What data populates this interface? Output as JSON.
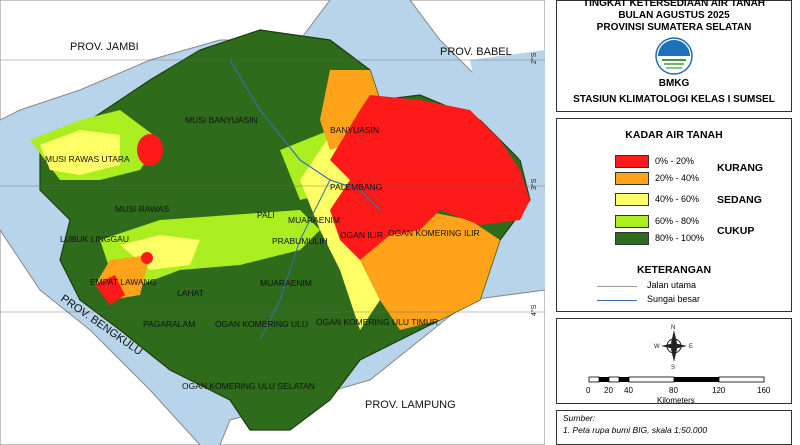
{
  "header": {
    "line1": "TINGKAT KETERSEDIAAN AIR TANAH",
    "line2": "BULAN AGUSTUS 2025",
    "line3": "PROVINSI SUMATERA SELATAN",
    "logo_text": "BMKG",
    "station": "STASIUN KLIMATOLOGI KELAS I SUMSEL"
  },
  "legend": {
    "title": "KADAR AIR TANAH",
    "items": [
      {
        "range": "0% - 20%",
        "color": "#ff1a1a"
      },
      {
        "range": "20% - 40%",
        "color": "#ffa31a"
      },
      {
        "range": "40% - 60%",
        "color": "#ffff66"
      },
      {
        "range": "60% - 80%",
        "color": "#aaee22"
      },
      {
        "range": "80% - 100%",
        "color": "#2e6b1a"
      }
    ],
    "classes": [
      "KURANG",
      "SEDANG",
      "CUKUP"
    ]
  },
  "keterangan": {
    "title": "KETERANGAN",
    "items": [
      "Jalan utama",
      "Sungai besar"
    ]
  },
  "compass": {
    "n": "N",
    "s": "S",
    "e": "E",
    "w": "W"
  },
  "scale": {
    "ticks": [
      "0",
      "20",
      "40",
      "80",
      "120",
      "160"
    ],
    "unit": "Kilometers"
  },
  "source": {
    "label": "Sumber:",
    "line1": "1. Peta rupa bumi BIG, skala 1:50.000"
  },
  "map": {
    "neighbors": [
      "PROV. JAMBI",
      "PROV. BABEL",
      "PROV. BENGKULU",
      "PROV. LAMPUNG"
    ],
    "regencies": [
      "MUSI BANYUASIN",
      "BANYUASIN",
      "MUSI RAWAS UTARA",
      "MUSI RAWAS",
      "LUBUK LINGGAU",
      "PALEMBANG",
      "PALI",
      "MUARAENIM",
      "PRABUMULIH",
      "OGAN ILIR",
      "OGAN KOMERING ILIR",
      "EMPAT LAWANG",
      "LAHAT",
      "MUARAENIM",
      "PAGARALAM",
      "OGAN KOMERING ULU",
      "OGAN KOMERING ULU TIMUR",
      "OGAN KOMERING ULU SELATAN"
    ],
    "coords": [
      "2°S",
      "3°S",
      "4°S"
    ]
  }
}
